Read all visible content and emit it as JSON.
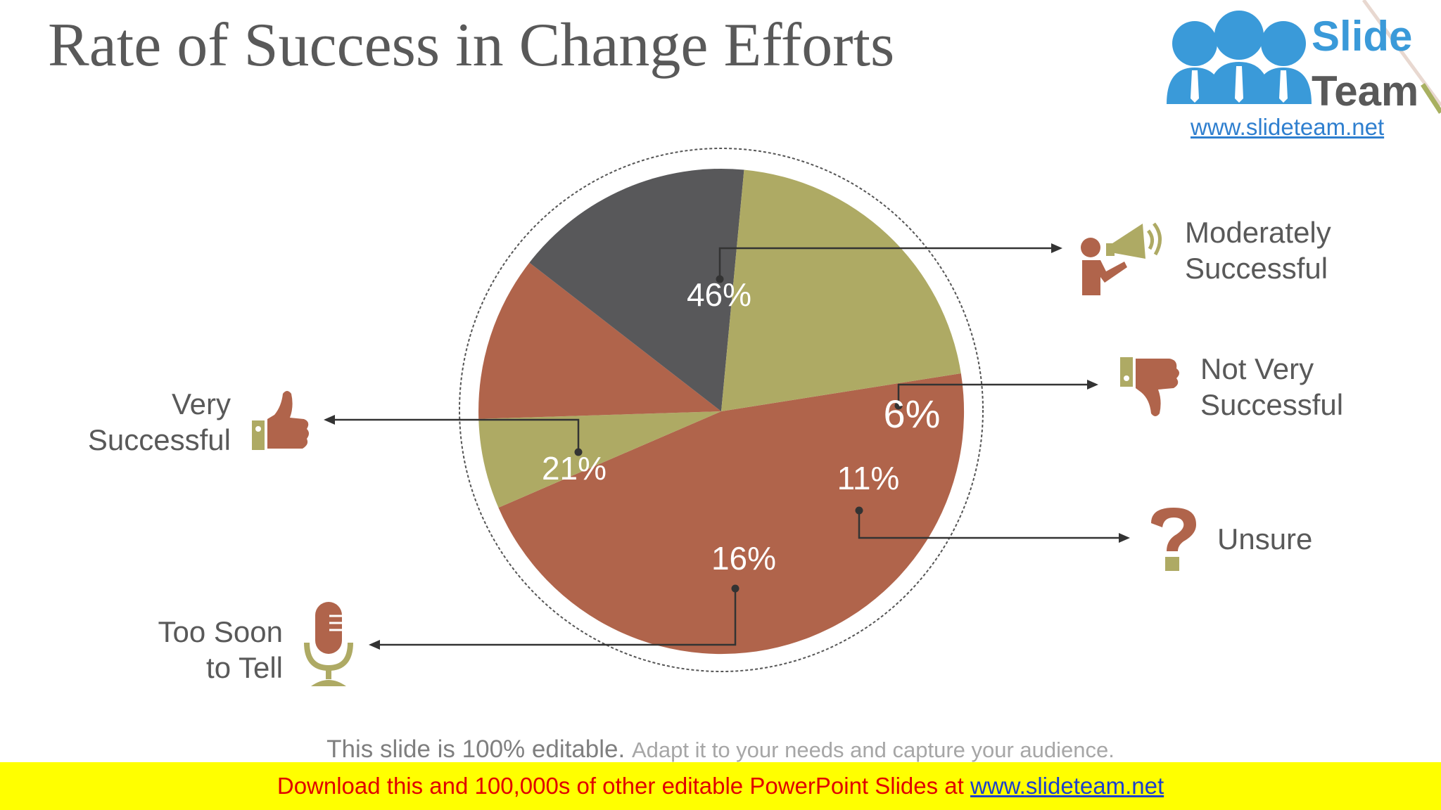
{
  "title": "Rate of Success in Change Efforts",
  "logo": {
    "word1": "Slide",
    "word2": "Team",
    "url": "www.slideteam.net"
  },
  "chart_data": {
    "type": "pie",
    "title": "Rate of Success in Change Efforts",
    "start_angle_deg": 9,
    "slices": [
      {
        "label": "Moderately Successful",
        "label_lines": [
          "Moderately",
          "Successful"
        ],
        "value": 46,
        "value_label": "46%",
        "color": "#b0644b",
        "icon": "megaphone-speaker-icon"
      },
      {
        "label": "Not Very Successful",
        "label_lines": [
          "Not Very",
          "Successful"
        ],
        "value": 6,
        "value_label": "6%",
        "color": "#aeaa64",
        "icon": "thumbs-down-icon"
      },
      {
        "label": "Unsure",
        "label_lines": [
          "Unsure"
        ],
        "value": 11,
        "value_label": "11%",
        "color": "#b0644b",
        "icon": "question-mark-icon"
      },
      {
        "label": "Too Soon to Tell",
        "label_lines": [
          "Too Soon",
          "to Tell"
        ],
        "value": 16,
        "value_label": "16%",
        "color": "#58585a",
        "icon": "microphone-icon"
      },
      {
        "label": "Very Successful",
        "label_lines": [
          "Very",
          "Successful"
        ],
        "value": 21,
        "value_label": "21%",
        "color": "#aeaa64",
        "icon": "thumbs-up-icon"
      }
    ]
  },
  "footer": {
    "note_a": "This slide is 100% editable.",
    "note_b": "Adapt it to your needs and capture your audience.",
    "banner_text": "Download this and 100,000s of other editable PowerPoint Slides at",
    "banner_link": "www.slideteam.net"
  },
  "colors": {
    "rust": "#b0644b",
    "olive": "#aeaa64",
    "charcoal": "#58585a",
    "banner_bg": "#ffff00",
    "banner_text": "#e00000",
    "link": "#1a3fcf"
  }
}
